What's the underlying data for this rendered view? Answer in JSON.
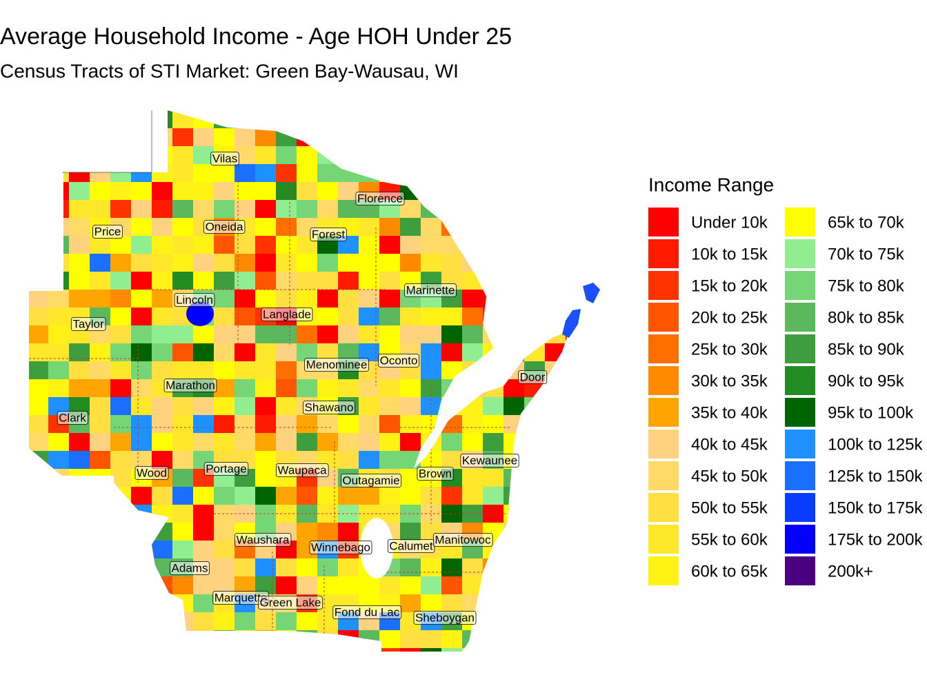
{
  "title": "Average Household Income - Age HOH Under 25",
  "subtitle": "Census Tracts of STI Market: Green Bay-Wausau, WI",
  "legend": {
    "title": "Income Range",
    "items": [
      {
        "label": "Under 10k",
        "color": "#ff0000"
      },
      {
        "label": "10k to 15k",
        "color": "#ff1a00"
      },
      {
        "label": "15k to 20k",
        "color": "#ff3300"
      },
      {
        "label": "20k to 25k",
        "color": "#ff5500"
      },
      {
        "label": "25k to 30k",
        "color": "#ff6f00"
      },
      {
        "label": "30k to 35k",
        "color": "#ff8a00"
      },
      {
        "label": "35k to 40k",
        "color": "#ffa500"
      },
      {
        "label": "40k to 45k",
        "color": "#ffd27f"
      },
      {
        "label": "45k to 50k",
        "color": "#ffda66"
      },
      {
        "label": "50k to 55k",
        "color": "#ffe040"
      },
      {
        "label": "55k to 60k",
        "color": "#ffe82a"
      },
      {
        "label": "60k to 65k",
        "color": "#fff214"
      },
      {
        "label": "65k to 70k",
        "color": "#ffff00"
      },
      {
        "label": "70k to 75k",
        "color": "#90ee90"
      },
      {
        "label": "75k to 80k",
        "color": "#76d676"
      },
      {
        "label": "80k to 85k",
        "color": "#5cb85c"
      },
      {
        "label": "85k to 90k",
        "color": "#3e9e3e"
      },
      {
        "label": "90k to 95k",
        "color": "#228b22"
      },
      {
        "label": "95k to 100k",
        "color": "#006400"
      },
      {
        "label": "100k to 125k",
        "color": "#1e90ff"
      },
      {
        "label": "125k to 150k",
        "color": "#1a6fff"
      },
      {
        "label": "150k to 175k",
        "color": "#0a3cff"
      },
      {
        "label": "175k to 200k",
        "color": "#0000ff"
      },
      {
        "label": "200k+",
        "color": "#4b0082"
      }
    ]
  },
  "counties": [
    "Vilas",
    "Florence",
    "Price",
    "Oneida",
    "Forest",
    "Marinette",
    "Lincoln",
    "Langlade",
    "Taylor",
    "Oconto",
    "Menominee",
    "Door",
    "Marathon",
    "Shawano",
    "Clark",
    "Kewaunee",
    "Wood",
    "Portage",
    "Waupaca",
    "Brown",
    "Outagamie",
    "Waushara",
    "Winnebago",
    "Calumet",
    "Manitowoc",
    "Adams",
    "Marquette",
    "Green Lake",
    "Fond du Lac",
    "Sheboygan"
  ]
}
